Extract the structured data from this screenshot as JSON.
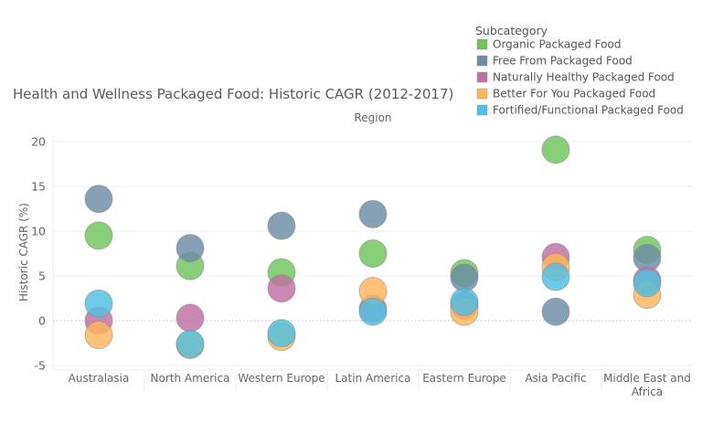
{
  "chart_data": {
    "type": "scatter",
    "title": "Health and Wellness Packaged Food: Historic CAGR (2012-2017)",
    "subtitle": "Region",
    "xlabel": "",
    "ylabel": "Historic CAGR (%)",
    "ylim": [
      -5.5,
      21
    ],
    "yticks": [
      -5,
      0,
      5,
      10,
      15,
      20
    ],
    "grid": true,
    "legend": {
      "title": "Subcategory",
      "position": "top-right"
    },
    "categories": [
      "Australasia",
      "North America",
      "Western Europe",
      "Latin America",
      "Eastern Europe",
      "Asia Pacific",
      "Middle East and Africa"
    ],
    "series": [
      {
        "name": "Organic Packaged Food",
        "color": "#6cc45a",
        "values": [
          9.5,
          6.1,
          5.4,
          7.5,
          5.3,
          19.1,
          7.9
        ]
      },
      {
        "name": "Free From Packaged Food",
        "color": "#6a8ca2",
        "values": [
          13.6,
          8.1,
          10.6,
          11.9,
          4.8,
          1.0,
          7.0
        ]
      },
      {
        "name": "Naturally Healthy Packaged Food",
        "color": "#c06fa0",
        "values": [
          0.0,
          0.3,
          3.6,
          1.3,
          1.7,
          7.1,
          4.5
        ]
      },
      {
        "name": "Better For You Packaged Food",
        "color": "#ffb55a",
        "values": [
          -1.6,
          -2.7,
          -1.8,
          3.3,
          1.0,
          6.0,
          2.9
        ]
      },
      {
        "name": "Fortified/Functional Packaged Food",
        "color": "#4ec0e2",
        "values": [
          1.9,
          -2.6,
          -1.4,
          1.0,
          2.1,
          4.9,
          4.2
        ]
      }
    ]
  }
}
